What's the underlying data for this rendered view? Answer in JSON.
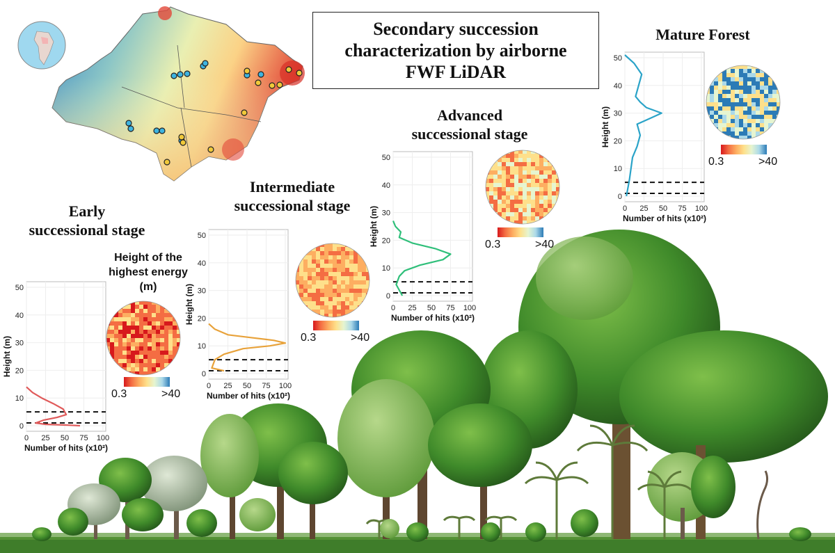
{
  "title": {
    "lines": [
      "Secondary succession",
      "characterization by airborne",
      "FWF LiDAR"
    ]
  },
  "legend_title": [
    "Height of the",
    "highest energy",
    "(m)"
  ],
  "colorbar": {
    "min_label": "0.3",
    "max_label": ">40",
    "colors": [
      "#d7191c",
      "#f46d43",
      "#fdae61",
      "#fee08b",
      "#e6f5d0",
      "#abd9e9",
      "#2c7bb6"
    ]
  },
  "panels": [
    {
      "id": "early",
      "title": [
        "Early",
        "successional stage"
      ],
      "line_color": "#e05a5a",
      "yticks": [
        "0",
        "10",
        "20",
        "30",
        "40",
        "50"
      ],
      "xticks": [
        "0",
        "25",
        "50",
        "75",
        "100"
      ]
    },
    {
      "id": "intermediate",
      "title": [
        "Intermediate",
        "successional stage"
      ],
      "line_color": "#e8a23a",
      "yticks": [
        "0",
        "10",
        "20",
        "30",
        "40",
        "50"
      ],
      "xticks": [
        "0",
        "25",
        "50",
        "75",
        "100"
      ]
    },
    {
      "id": "advanced",
      "title": [
        "Advanced",
        "successional stage"
      ],
      "line_color": "#2fbf7a",
      "yticks": [
        "0",
        "10",
        "20",
        "30",
        "40",
        "50"
      ],
      "xticks": [
        "0",
        "25",
        "50",
        "75",
        "100"
      ]
    },
    {
      "id": "mature",
      "title": [
        "Mature Forest"
      ],
      "line_color": "#2aa3c8",
      "yticks": [
        "0",
        "10",
        "20",
        "30",
        "40",
        "50"
      ],
      "xticks": [
        "0",
        "25",
        "50",
        "75",
        "100"
      ]
    }
  ],
  "axis": {
    "ylabel": "Height (m)",
    "xlabel": "Number of hits (x10²)"
  },
  "chart_data": [
    {
      "type": "line",
      "title": "Early successional stage",
      "xlabel": "Number of hits (x10²)",
      "ylabel": "Height (m)",
      "xlim": [
        0,
        100
      ],
      "ylim": [
        0,
        50
      ],
      "hlines": [
        1,
        5
      ],
      "series": [
        {
          "x": [
            0,
            8,
            20,
            35,
            48,
            52,
            40,
            22,
            12,
            25,
            55,
            70
          ],
          "y": [
            14,
            12,
            10,
            8,
            6,
            4,
            3,
            2,
            1,
            0.5,
            0.2,
            0
          ]
        }
      ]
    },
    {
      "type": "line",
      "title": "Intermediate successional stage",
      "xlabel": "Number of hits (x10²)",
      "ylabel": "Height (m)",
      "xlim": [
        0,
        100
      ],
      "ylim": [
        0,
        50
      ],
      "hlines": [
        1,
        5
      ],
      "series": [
        {
          "x": [
            0,
            8,
            25,
            55,
            85,
            100,
            80,
            45,
            20,
            8,
            4,
            20
          ],
          "y": [
            18,
            16,
            14,
            13,
            12,
            11,
            10,
            9,
            7,
            5,
            2,
            1
          ]
        }
      ]
    },
    {
      "type": "line",
      "title": "Advanced successional stage",
      "xlabel": "Number of hits (x10²)",
      "ylabel": "Height (m)",
      "xlim": [
        0,
        100
      ],
      "ylim": [
        0,
        50
      ],
      "hlines": [
        1,
        5
      ],
      "series": [
        {
          "x": [
            0,
            3,
            10,
            8,
            25,
            55,
            75,
            65,
            35,
            15,
            8,
            4,
            8,
            12
          ],
          "y": [
            27,
            25,
            23,
            21,
            19,
            17,
            15,
            13,
            11,
            9,
            7,
            4,
            2,
            0
          ]
        }
      ]
    },
    {
      "type": "line",
      "title": "Mature Forest",
      "xlabel": "Number of hits (x10²)",
      "ylabel": "Height (m)",
      "xlim": [
        0,
        100
      ],
      "ylim": [
        0,
        50
      ],
      "hlines": [
        1,
        5
      ],
      "series": [
        {
          "x": [
            0,
            12,
            22,
            18,
            14,
            20,
            28,
            48,
            32,
            16,
            20,
            16,
            10,
            8,
            6,
            4,
            2
          ],
          "y": [
            51,
            48,
            44,
            40,
            36,
            34,
            32,
            30,
            28,
            26,
            22,
            18,
            14,
            10,
            6,
            3,
            0
          ]
        }
      ]
    }
  ]
}
